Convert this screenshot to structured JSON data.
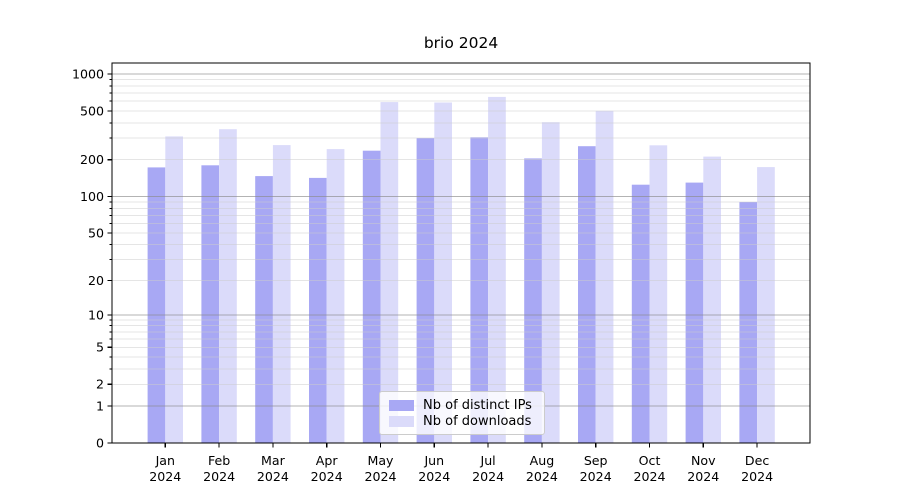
{
  "chart_data": {
    "type": "bar",
    "title": "brio 2024",
    "categories": [
      "Jan",
      "Feb",
      "Mar",
      "Apr",
      "May",
      "Jun",
      "Jul",
      "Aug",
      "Sep",
      "Oct",
      "Nov",
      "Dec"
    ],
    "x_year_label": "2024",
    "series": [
      {
        "name": "Nb of distinct IPs",
        "color": "#a8a8f4",
        "values": [
          173,
          180,
          147,
          142,
          237,
          300,
          305,
          205,
          258,
          125,
          130,
          90
        ]
      },
      {
        "name": "Nb of downloads",
        "color": "#dbdbfa",
        "values": [
          310,
          355,
          263,
          244,
          590,
          585,
          650,
          405,
          500,
          262,
          212,
          174
        ]
      }
    ],
    "y_axis": {
      "scale": "log(1+x)",
      "tick_values": [
        1000,
        500,
        200,
        100,
        50,
        20,
        10,
        5,
        2,
        1,
        0
      ],
      "range": [
        0,
        1270
      ]
    },
    "grid": {
      "on": true,
      "major_values": [
        1,
        10,
        100,
        1000
      ],
      "minor_values": [
        2,
        3,
        4,
        5,
        6,
        7,
        8,
        9,
        20,
        30,
        40,
        50,
        60,
        70,
        80,
        90,
        200,
        300,
        400,
        500,
        600,
        700,
        800,
        900
      ]
    },
    "legend": {
      "position": "lower center"
    },
    "colors": {
      "spine": "#000000",
      "major_grid": "#8a8a8a",
      "minor_grid": "#cccccc",
      "text": "#000000"
    }
  }
}
